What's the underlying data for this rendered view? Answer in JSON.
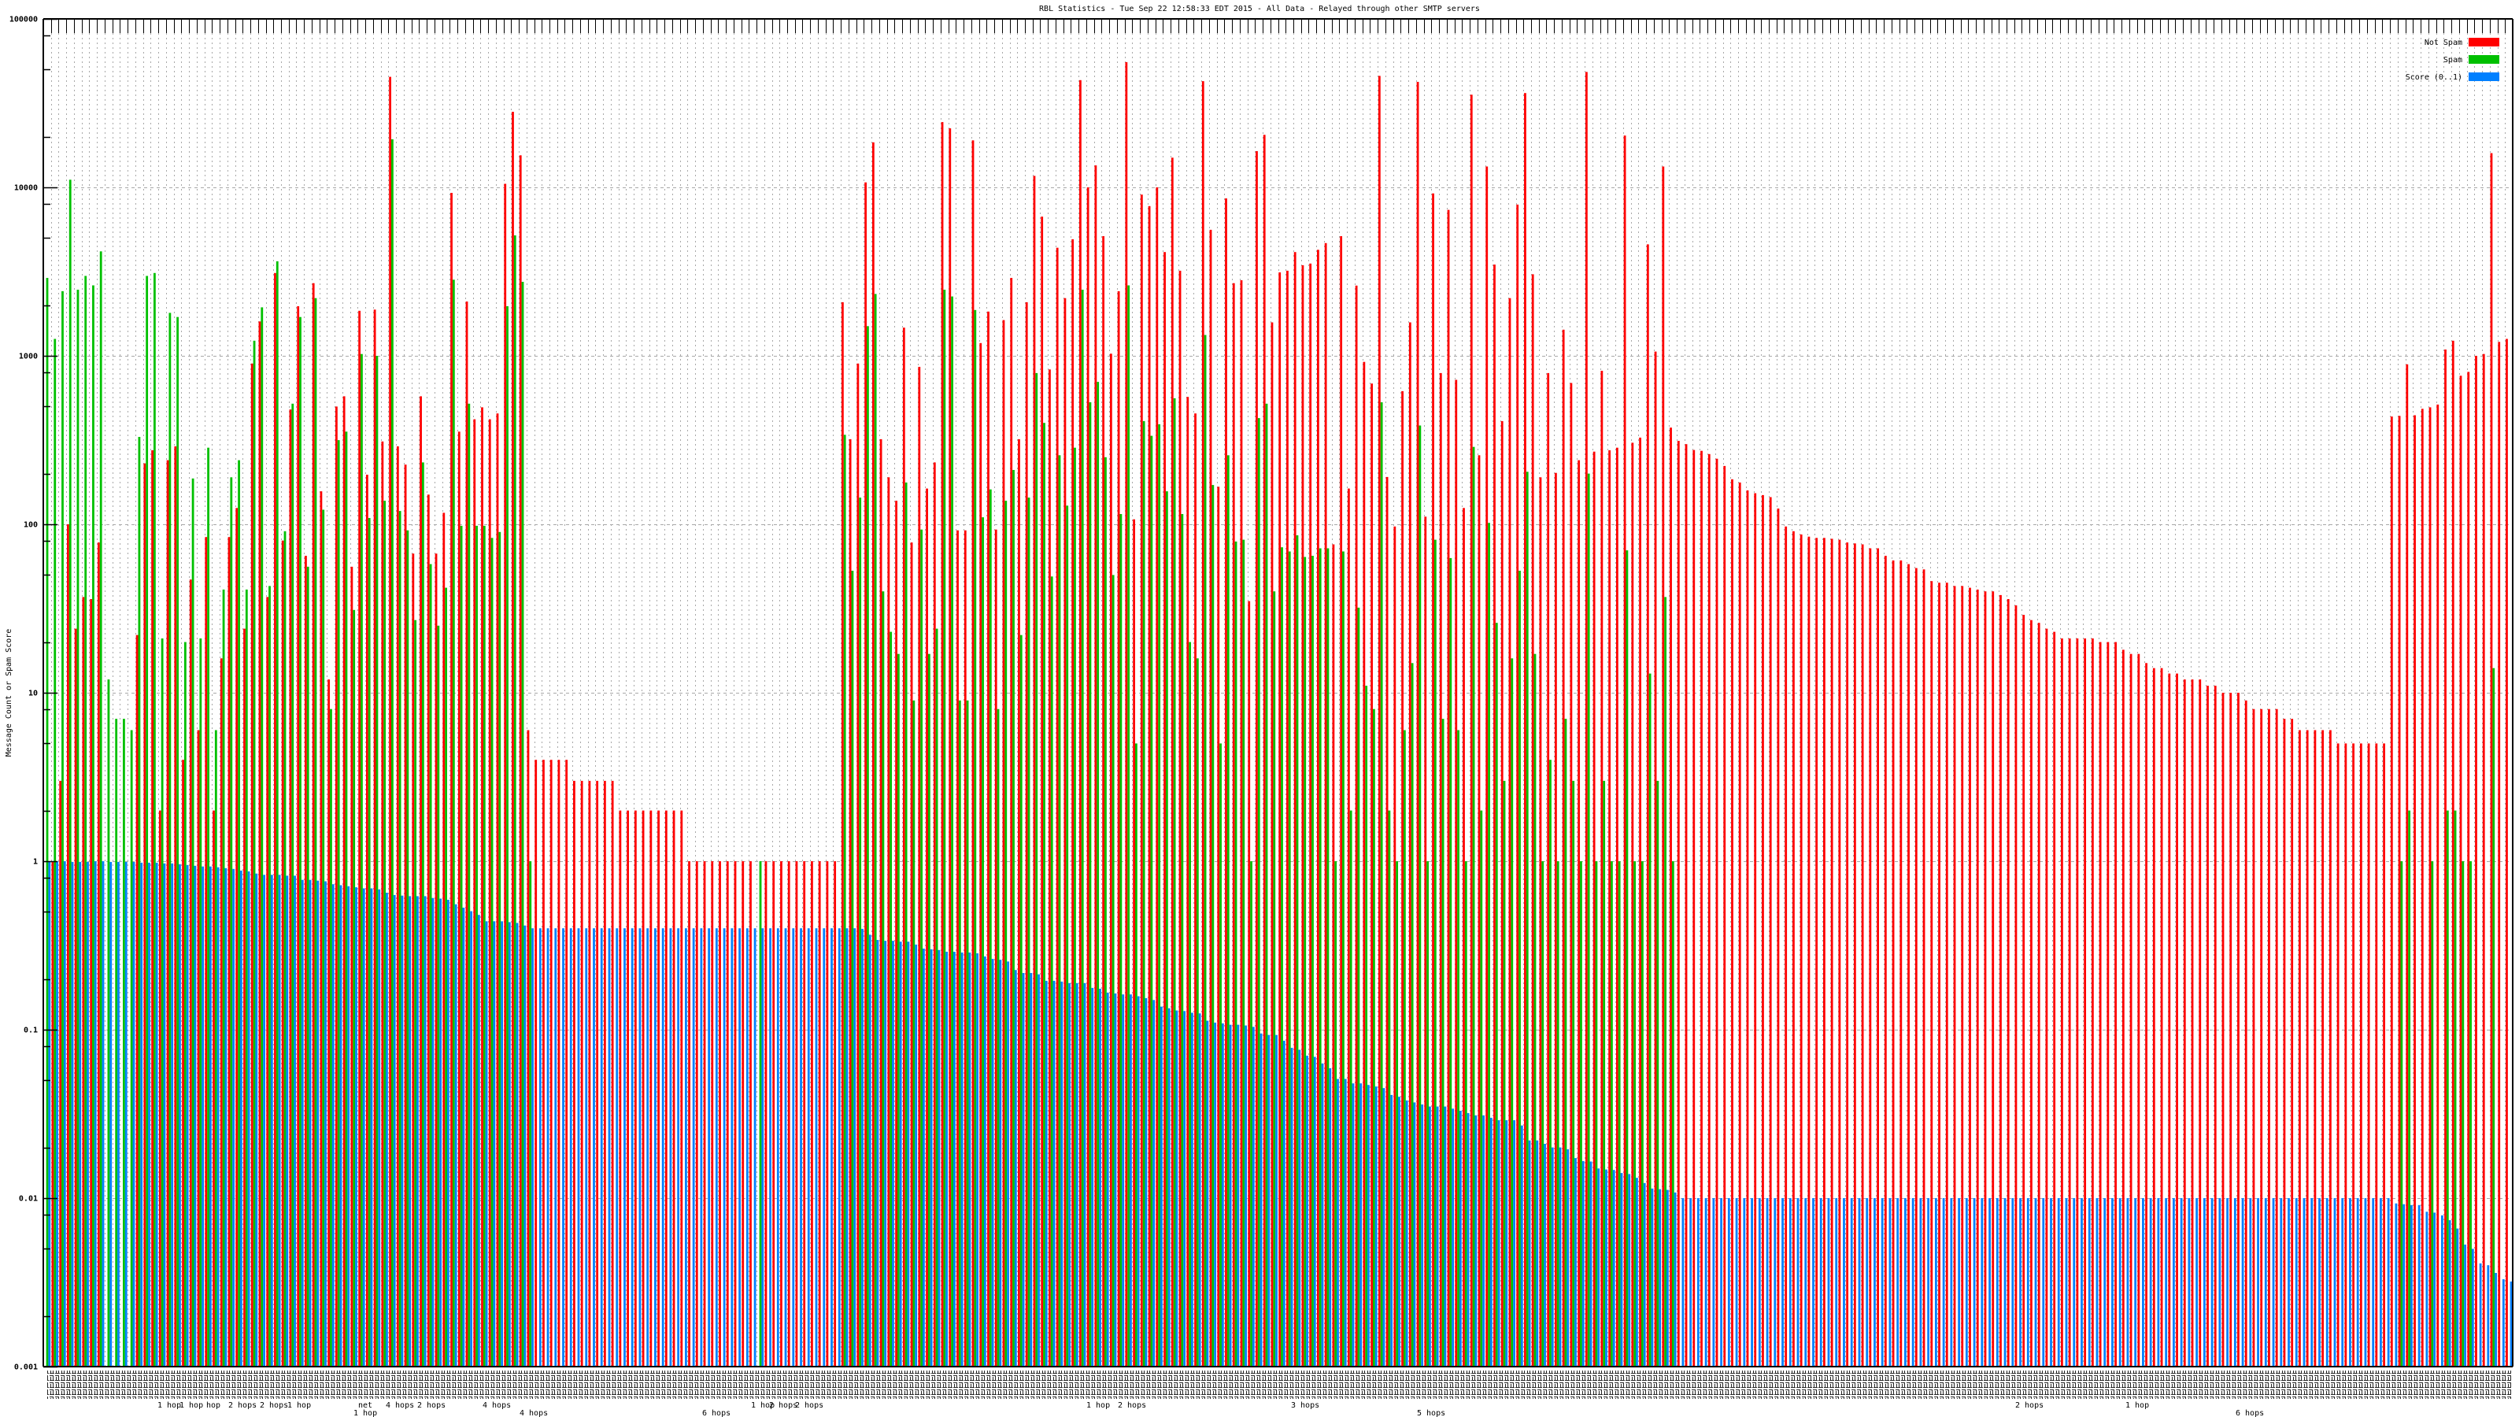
{
  "chart_data": {
    "type": "bar",
    "title": "RBL Statistics - Tue Sep 22 12:58:33 EDT 2015 - All Data - Relayed through other SMTP servers",
    "ylabel": "Message Count or Spam Score",
    "xlabel": "",
    "yscale": "log",
    "ylim": [
      0.001,
      100000
    ],
    "grid": true,
    "legend_position": "top-right",
    "yticks": [
      {
        "value": 100000,
        "label": "100000"
      },
      {
        "value": 10000,
        "label": "10000"
      },
      {
        "value": 1000,
        "label": "1000"
      },
      {
        "value": 100,
        "label": "100"
      },
      {
        "value": 10,
        "label": "10"
      },
      {
        "value": 1,
        "label": "1"
      },
      {
        "value": 0.1,
        "label": "0.1"
      },
      {
        "value": 0.01,
        "label": "0.01"
      },
      {
        "value": 0.001,
        "label": "0.001"
      }
    ],
    "x_label_fragments": [
      "1 hop",
      "1 hop",
      "hop",
      "2 hops",
      "2 hops",
      "1 hop",
      "net",
      "4 hops",
      "2 hops",
      "4 hops",
      "1 hop",
      "4 hops",
      "6 hops",
      "1 hop",
      "2 hops",
      "2 hops",
      "1 hop",
      "2 hops",
      "3 hops",
      "5 hops",
      "2 hops",
      "1 hop",
      "6 hops"
    ],
    "category_count": 322,
    "series": [
      {
        "name": "Not Spam",
        "color": "#ff0000",
        "values": [
          0,
          1,
          3,
          100,
          24,
          37,
          36,
          78,
          0,
          0,
          0,
          0,
          22,
          230,
          275,
          2,
          240,
          290,
          4,
          47,
          6,
          84,
          2,
          16,
          84,
          125,
          24,
          900,
          1600,
          37,
          3100,
          80,
          480,
          1970,
          65,
          2700,
          157,
          12,
          500,
          575,
          56,
          1850,
          197,
          1880,
          310,
          45300,
          290,
          226,
          67,
          575,
          150,
          67,
          117,
          9270,
          355,
          2100,
          420,
          495,
          420,
          455,
          10500,
          28100,
          15500,
          6,
          4,
          4,
          4,
          4,
          4,
          3,
          3,
          3,
          3,
          3,
          3,
          2,
          2,
          2,
          2,
          2,
          2,
          2,
          2,
          2,
          1,
          1,
          1,
          1,
          1,
          1,
          1,
          1,
          1,
          0,
          1,
          1,
          1,
          1,
          1,
          1,
          1,
          1,
          1,
          1,
          2080,
          320,
          900,
          10700,
          18500,
          320,
          190,
          138,
          1470,
          78,
          860,
          163,
          233,
          24400,
          22400,
          92,
          92,
          19000,
          1190,
          1830,
          93,
          1630,
          2900,
          320,
          2080,
          11700,
          6700,
          830,
          4380,
          2200,
          4920,
          43300,
          10000,
          13500,
          5130,
          1030,
          2420,
          55400,
          107,
          9060,
          7740,
          10000,
          4130,
          15000,
          3200,
          570,
          455,
          42700,
          5600,
          167,
          8600,
          2700,
          2810,
          35,
          16400,
          20500,
          1580,
          3130,
          3200,
          4130,
          3450,
          3530,
          4260,
          4670,
          76,
          5130,
          163,
          2610,
          920,
          685,
          45900,
          191,
          97,
          617,
          1580,
          42300,
          111,
          9200,
          790,
          7350,
          720,
          125,
          35500,
          257,
          13300,
          3480,
          410,
          2200,
          7900,
          36300,
          3050,
          190,
          790,
          202,
          1430,
          690,
          240,
          48400,
          270,
          815,
          275,
          285,
          20300,
          305,
          327,
          4590,
          1060,
          13300,
          375,
          313,
          299,
          276,
          273,
          261,
          245,
          222,
          185,
          177,
          159,
          153,
          149,
          145,
          124,
          97,
          91,
          87,
          84.5,
          83,
          83,
          82,
          81,
          78,
          77,
          76,
          72,
          72,
          65,
          61,
          61,
          58,
          55,
          54,
          46,
          45,
          45,
          43,
          43,
          42,
          41,
          40,
          40,
          38,
          36,
          33,
          29,
          27,
          26,
          24,
          23,
          21,
          21,
          21,
          21,
          21,
          20,
          20,
          20,
          18,
          17,
          17,
          15,
          14,
          14,
          13,
          13,
          12,
          12,
          12,
          11,
          11,
          10,
          10,
          10,
          9,
          8,
          8,
          8,
          8,
          7,
          7,
          6,
          6,
          6,
          6,
          6,
          5,
          5,
          5,
          5,
          5,
          5,
          5,
          436,
          440,
          890,
          444,
          485,
          495,
          514,
          1090,
          1230,
          762,
          803,
          1000,
          1025,
          15970,
          1210,
          1260
        ]
      },
      {
        "name": "Spam",
        "color": "#00c000",
        "values": [
          2900,
          1260,
          2420,
          11100,
          2470,
          2980,
          2620,
          4170,
          12,
          7,
          7,
          6,
          330,
          2980,
          3100,
          21,
          1800,
          1700,
          20,
          187,
          21,
          285,
          6,
          41,
          190,
          240,
          41,
          1230,
          1940,
          43,
          3640,
          91,
          520,
          1700,
          56,
          2200,
          122,
          8,
          316,
          355,
          31,
          1025,
          109,
          1000,
          138,
          19300,
          120,
          92,
          27,
          233,
          58,
          25,
          42,
          2830,
          98,
          520,
          98,
          98,
          83,
          90,
          1970,
          5190,
          2750,
          1,
          0,
          0,
          0,
          0,
          0,
          0,
          0,
          0,
          0,
          0,
          0,
          0,
          0,
          0,
          0,
          0,
          0,
          0,
          0,
          0,
          0,
          0,
          0,
          0,
          0,
          0,
          0,
          0,
          0,
          1,
          0,
          0,
          0,
          0,
          0,
          0,
          0,
          0,
          0,
          0,
          340,
          53,
          144,
          1500,
          2330,
          40,
          23,
          17,
          177,
          9,
          93,
          17,
          24,
          2470,
          2250,
          9,
          9,
          1870,
          110,
          161,
          8,
          138,
          210,
          22,
          144,
          790,
          400,
          49,
          257,
          129,
          285,
          2470,
          530,
          700,
          250,
          50,
          115,
          2620,
          5,
          410,
          335,
          392,
          157,
          560,
          115,
          20,
          16,
          1330,
          171,
          5,
          257,
          79,
          81,
          1,
          427,
          520,
          40,
          73,
          69,
          86,
          64,
          65,
          72,
          72,
          1,
          69,
          2,
          32,
          11,
          8,
          530,
          2,
          1,
          6,
          15,
          386,
          1,
          81,
          7,
          63,
          6,
          1,
          288,
          2,
          102,
          26,
          3,
          16,
          53,
          205,
          17,
          1,
          4,
          1,
          7,
          3,
          1,
          200,
          1,
          3,
          1,
          1,
          70,
          1,
          1,
          13,
          3,
          37,
          1,
          0,
          0,
          0,
          0,
          0,
          0,
          0,
          0,
          0,
          0,
          0,
          0,
          0,
          0,
          0,
          0,
          0,
          0,
          0,
          0,
          0,
          0,
          0,
          0,
          0,
          0,
          0,
          0,
          0,
          0,
          0,
          0,
          0,
          0,
          0,
          0,
          0,
          0,
          0,
          0,
          0,
          0,
          0,
          0,
          0,
          0,
          0,
          0,
          0,
          0,
          0,
          0,
          0,
          0,
          0,
          0,
          0,
          0,
          0,
          0,
          0,
          0,
          0,
          0,
          0,
          0,
          0,
          0,
          0,
          0,
          0,
          0,
          0,
          0,
          0,
          0,
          0,
          0,
          0,
          0,
          0,
          0,
          0,
          0,
          0,
          0,
          0,
          0,
          0,
          0,
          0,
          0,
          0,
          0,
          1,
          2,
          0,
          0,
          1,
          0,
          2,
          2,
          1,
          1,
          0,
          0,
          14,
          0,
          0
        ]
      },
      {
        "name": "Score (0..1)",
        "color": "#0080ff",
        "values": [
          1,
          1,
          1,
          0.99,
          0.99,
          0.99,
          1,
          1,
          0.99,
          0.99,
          0.99,
          0.99,
          0.98,
          0.98,
          0.98,
          0.97,
          0.97,
          0.96,
          0.95,
          0.94,
          0.93,
          0.93,
          0.92,
          0.91,
          0.9,
          0.88,
          0.87,
          0.845,
          0.83,
          0.83,
          0.83,
          0.82,
          0.82,
          0.775,
          0.775,
          0.767,
          0.76,
          0.73,
          0.72,
          0.71,
          0.7,
          0.69,
          0.69,
          0.68,
          0.65,
          0.63,
          0.625,
          0.62,
          0.62,
          0.62,
          0.605,
          0.6,
          0.59,
          0.555,
          0.53,
          0.505,
          0.48,
          0.44,
          0.44,
          0.44,
          0.435,
          0.43,
          0.415,
          0.4,
          0.4,
          0.4,
          0.4,
          0.4,
          0.4,
          0.4,
          0.4,
          0.4,
          0.4,
          0.4,
          0.4,
          0.4,
          0.4,
          0.4,
          0.4,
          0.4,
          0.4,
          0.4,
          0.4,
          0.4,
          0.4,
          0.4,
          0.4,
          0.4,
          0.4,
          0.4,
          0.4,
          0.4,
          0.4,
          0.4,
          0.4,
          0.4,
          0.4,
          0.4,
          0.4,
          0.4,
          0.4,
          0.4,
          0.4,
          0.4,
          0.4,
          0.4,
          0.397,
          0.366,
          0.341,
          0.337,
          0.337,
          0.333,
          0.333,
          0.32,
          0.303,
          0.3,
          0.297,
          0.29,
          0.29,
          0.287,
          0.287,
          0.284,
          0.272,
          0.263,
          0.26,
          0.254,
          0.226,
          0.217,
          0.217,
          0.213,
          0.195,
          0.195,
          0.193,
          0.189,
          0.189,
          0.189,
          0.177,
          0.175,
          0.166,
          0.164,
          0.162,
          0.162,
          0.158,
          0.154,
          0.15,
          0.137,
          0.134,
          0.13,
          0.129,
          0.126,
          0.125,
          0.113,
          0.11,
          0.109,
          0.107,
          0.107,
          0.106,
          0.104,
          0.095,
          0.093,
          0.093,
          0.086,
          0.078,
          0.076,
          0.07,
          0.069,
          0.063,
          0.059,
          0.051,
          0.051,
          0.048,
          0.048,
          0.047,
          0.046,
          0.045,
          0.041,
          0.04,
          0.038,
          0.037,
          0.036,
          0.035,
          0.035,
          0.035,
          0.034,
          0.033,
          0.032,
          0.031,
          0.031,
          0.03,
          0.029,
          0.029,
          0.029,
          0.027,
          0.022,
          0.022,
          0.021,
          0.02,
          0.02,
          0.0195,
          0.0173,
          0.0166,
          0.0165,
          0.015,
          0.0148,
          0.0147,
          0.0141,
          0.0139,
          0.0132,
          0.0123,
          0.0114,
          0.0113,
          0.0112,
          0.0108,
          0.01,
          0.01,
          0.01,
          0.01,
          0.01,
          0.01,
          0.01,
          0.01,
          0.01,
          0.01,
          0.01,
          0.01,
          0.01,
          0.01,
          0.01,
          0.01,
          0.01,
          0.01,
          0.01,
          0.01,
          0.01,
          0.01,
          0.01,
          0.01,
          0.01,
          0.01,
          0.01,
          0.01,
          0.01,
          0.01,
          0.01,
          0.01,
          0.01,
          0.01,
          0.01,
          0.01,
          0.01,
          0.01,
          0.01,
          0.01,
          0.01,
          0.01,
          0.01,
          0.01,
          0.01,
          0.01,
          0.01,
          0.01,
          0.01,
          0.01,
          0.01,
          0.01,
          0.01,
          0.01,
          0.01,
          0.01,
          0.01,
          0.01,
          0.01,
          0.01,
          0.01,
          0.01,
          0.01,
          0.01,
          0.01,
          0.01,
          0.01,
          0.01,
          0.01,
          0.01,
          0.01,
          0.01,
          0.01,
          0.01,
          0.01,
          0.01,
          0.01,
          0.01,
          0.01,
          0.01,
          0.01,
          0.01,
          0.01,
          0.01,
          0.01,
          0.01,
          0.01,
          0.01,
          0.01,
          0.01,
          0.01,
          0.01,
          0.01,
          0.0093,
          0.0092,
          0.0091,
          0.0091,
          0.0083,
          0.0082,
          0.0079,
          0.0074,
          0.0066,
          0.0053,
          0.005,
          0.0041,
          0.004,
          0.0036,
          0.0033,
          0.0032
        ]
      }
    ]
  }
}
